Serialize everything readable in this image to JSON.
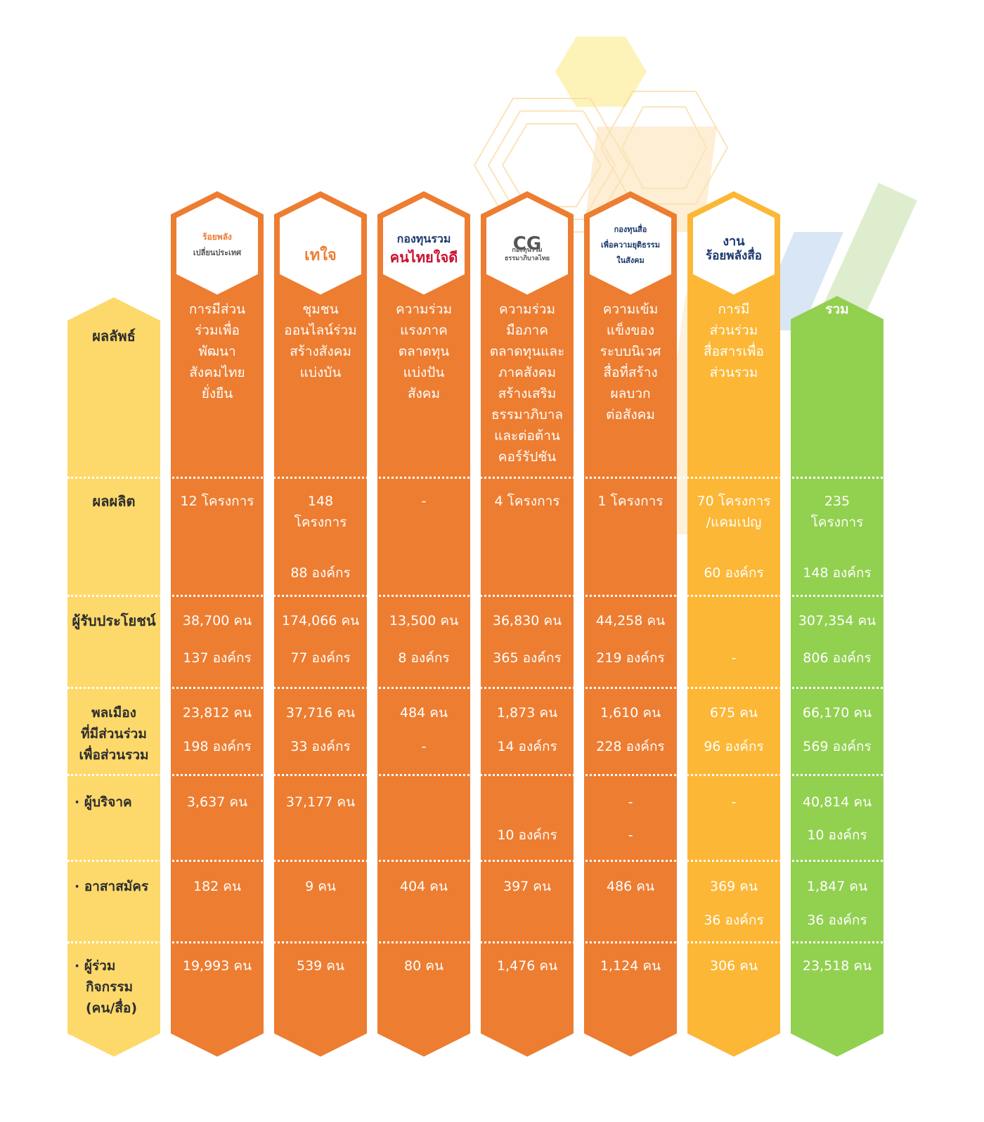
{
  "colors": {
    "label_col": "#FDD96B",
    "org_col": "#ED7D31",
    "media_col": "#FBB735",
    "total_col": "#92D050",
    "border_orange": "#ED7D31",
    "logo_navy": "#1D3A6E",
    "logo_red": "#C8102E"
  },
  "chart_data": {
    "type": "table",
    "row_labels": {
      "outcome": "ผลลัพธ์",
      "output": "ผลผลิต",
      "beneficiaries": "ผู้รับประโยชน์",
      "citizens": [
        "พลเมือง",
        "ที่มีส่วนร่วม",
        "เพื่อส่วนรวม"
      ],
      "donors": "ผู้บริจาค",
      "volunteers": "อาสาสมัคร",
      "participants": [
        "ผู้ร่วม",
        "กิจกรรม",
        "(คน/สื่อ)"
      ]
    },
    "columns": [
      {
        "logo": "ร้อยพลัง เปลี่ยนประเทศ",
        "logo_lines": [
          "ร้อยพลัง",
          "เปลี่ยนประเทศ"
        ],
        "outcome": [
          "การมีส่วน",
          "ร่วมเพื่อ",
          "พัฒนา",
          "สังคมไทย",
          "ยั่งยืน"
        ],
        "output_projects": [
          "12 โครงการ"
        ],
        "output_orgs": "",
        "ben_people": "38,700 คน",
        "ben_orgs": "137 องค์กร",
        "cit_people": "23,812 คน",
        "cit_orgs": "198 องค์กร",
        "donor_people": "3,637 คน",
        "donor_orgs": "",
        "vol_people": "182 คน",
        "vol_orgs": "",
        "participants": "19,993 คน"
      },
      {
        "logo": "เทใจ",
        "logo_lines": [
          "เทใจ"
        ],
        "outcome": [
          "ชุมชน",
          "ออนไลน์ร่วม",
          "สร้างสังคม",
          "แบ่งบัน"
        ],
        "output_projects": [
          "148",
          "โครงการ"
        ],
        "output_orgs": "88 องค์กร",
        "ben_people": "174,066 คน",
        "ben_orgs": "77 องค์กร",
        "cit_people": "37,716 คน",
        "cit_orgs": "33 องค์กร",
        "donor_people": "37,177 คน",
        "donor_orgs": "",
        "vol_people": "9 คน",
        "vol_orgs": "",
        "participants": "539 คน"
      },
      {
        "logo": "กองทุนรวม คนไทยใจดี",
        "logo_lines": [
          "กองทุนรวม",
          "คนไทยใจดี"
        ],
        "outcome": [
          "ความร่วม",
          "แรงภาค",
          "ตลาดทุน",
          "แบ่งปัน",
          "สังคม"
        ],
        "output_projects": [
          "-"
        ],
        "output_orgs": "",
        "ben_people": "13,500 คน",
        "ben_orgs": "8 องค์กร",
        "cit_people": "484 คน",
        "cit_orgs": "-",
        "donor_people": "",
        "donor_orgs": "",
        "vol_people": "404 คน",
        "vol_orgs": "",
        "participants": "80 คน"
      },
      {
        "logo": "CG กองทุนรวมธรรมาภิบาลไทย",
        "logo_lines": [
          "CG",
          "กองทุนรวม",
          "ธรรมาภิบาลไทย"
        ],
        "outcome": [
          "ความร่วม",
          "มือภาค",
          "ตลาดทุนและ",
          "ภาคสังคม",
          "สร้างเสริม",
          "ธรรมาภิบาล",
          "และต่อต้าน",
          "คอร์รัปชัน"
        ],
        "output_projects": [
          "4 โครงการ"
        ],
        "output_orgs": "",
        "ben_people": "36,830 คน",
        "ben_orgs": "365 องค์กร",
        "cit_people": "1,873 คน",
        "cit_orgs": "14 องค์กร",
        "donor_people": "",
        "donor_orgs": "10 องค์กร",
        "vol_people": "397 คน",
        "vol_orgs": "",
        "participants": "1,476 คน"
      },
      {
        "logo": "กองทุนสื่อเพื่อความยุติธรรมในสังคม",
        "logo_lines": [
          "กองทุนสื่อ",
          "เพื่อความยุติธรรม",
          "ในสังคม"
        ],
        "outcome": [
          "ความเข้ม",
          "แข็งของ",
          "ระบบนิเวศ",
          "สื่อที่สร้าง",
          "ผลบวก",
          "ต่อสังคม"
        ],
        "output_projects": [
          "1  โครงการ"
        ],
        "output_orgs": "",
        "ben_people": "44,258 คน",
        "ben_orgs": "219 องค์กร",
        "cit_people": "1,610 คน",
        "cit_orgs": "228 องค์กร",
        "donor_people": "-",
        "donor_orgs": "-",
        "vol_people": "486 คน",
        "vol_orgs": "",
        "participants": "1,124 คน"
      },
      {
        "logo": "งาน ร้อยพลังสื่อ",
        "logo_lines": [
          "งาน",
          "ร้อยพลังสื่อ"
        ],
        "outcome": [
          "การมี",
          "ส่วนร่วม",
          "สื่อสารเพื่อ",
          "ส่วนรวม"
        ],
        "output_projects": [
          "70 โครงการ",
          "/แคมเปญ"
        ],
        "output_orgs": "60 องค์กร",
        "ben_people": "",
        "ben_orgs": "-",
        "cit_people": "675 คน",
        "cit_orgs": "96 องค์กร",
        "donor_people": "-",
        "donor_orgs": "",
        "vol_people": "369 คน",
        "vol_orgs": "36 องค์กร",
        "participants": "306 คน"
      },
      {
        "logo": "",
        "logo_lines": [],
        "outcome": [
          "รวม"
        ],
        "output_projects": [
          "235",
          "โครงการ"
        ],
        "output_orgs": "148 องค์กร",
        "ben_people": "307,354 คน",
        "ben_orgs": "806 องค์กร",
        "cit_people": "66,170 คน",
        "cit_orgs": "569 องค์กร",
        "donor_people": "40,814 คน",
        "donor_orgs": "10 องค์กร",
        "vol_people": "1,847 คน",
        "vol_orgs": "36 องค์กร",
        "participants": "23,518 คน"
      }
    ]
  }
}
